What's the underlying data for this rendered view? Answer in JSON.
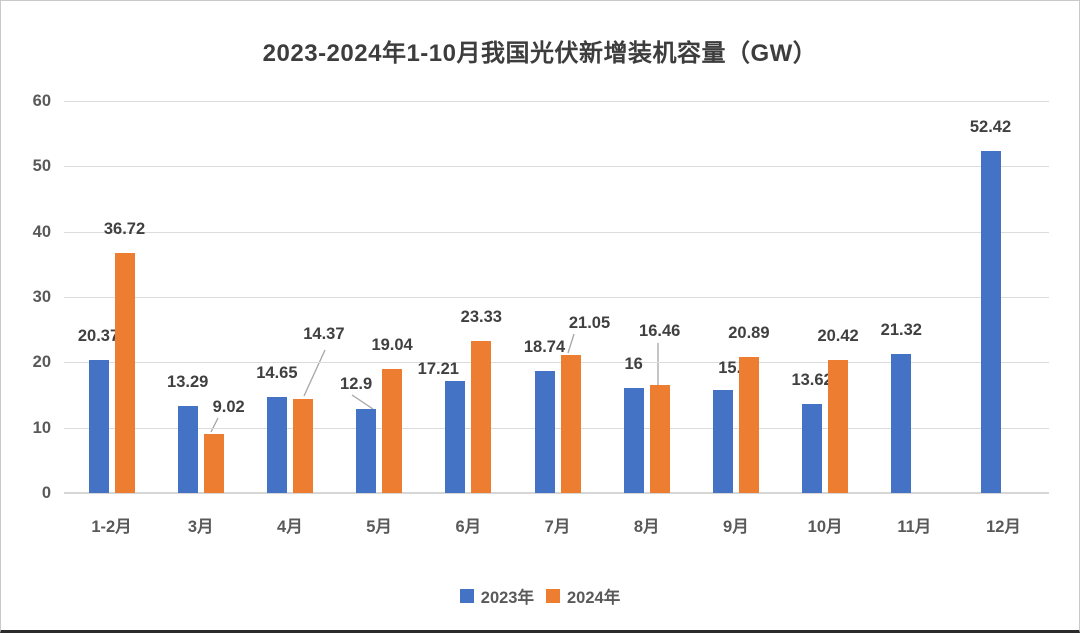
{
  "chart_data": {
    "type": "bar",
    "title": "2023-2024年1-10月我国光伏新增装机容量（GW）",
    "categories": [
      "1-2月",
      "3月",
      "4月",
      "5月",
      "6月",
      "7月",
      "8月",
      "9月",
      "10月",
      "11月",
      "12月"
    ],
    "series": [
      {
        "name": "2023年",
        "color": "#4472C4",
        "values": [
          20.37,
          13.29,
          14.65,
          12.9,
          17.21,
          18.74,
          16,
          15.78,
          13.62,
          21.32,
          52.42
        ]
      },
      {
        "name": "2024年",
        "color": "#ED7D31",
        "values": [
          36.72,
          9.02,
          14.37,
          19.04,
          23.33,
          21.05,
          16.46,
          20.89,
          20.42,
          null,
          null
        ]
      }
    ],
    "xlabel": "",
    "ylabel": "",
    "ylim": [
      0,
      60
    ],
    "yticks": [
      0,
      10,
      20,
      30,
      40,
      50,
      60
    ],
    "grid": true,
    "legend_position": "bottom",
    "data_labels_shown": true,
    "callout_labels": [
      "9.02",
      "14.37",
      "12.9",
      "21.05",
      "16.46"
    ],
    "colors": {
      "grid": "#dcdcdc",
      "axis_text": "#595959",
      "label_text": "#404040",
      "title_text": "#3d3d3d",
      "leader_line": "#a6a6a6"
    }
  }
}
